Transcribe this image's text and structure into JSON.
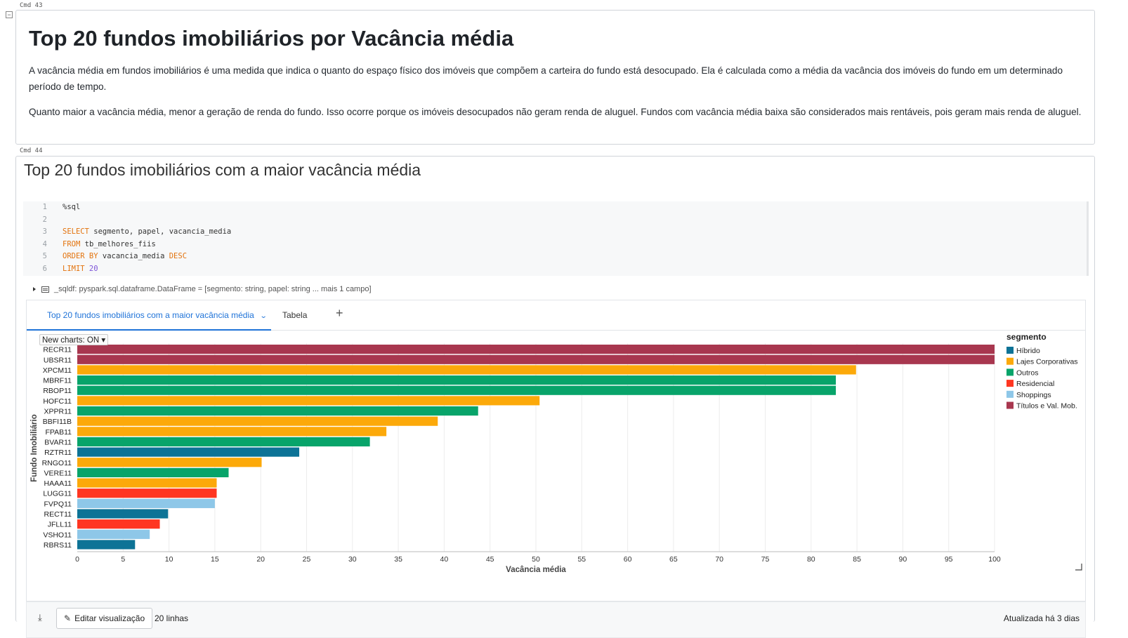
{
  "cells": {
    "cmd43": {
      "label": "Cmd  43"
    },
    "cmd44": {
      "label": "Cmd  44"
    }
  },
  "markdown": {
    "title": "Top 20 fundos imobiliários por Vacância média",
    "para1": "A vacância média em fundos imobiliários é uma medida que indica o quanto do espaço físico dos imóveis que compõem a carteira do fundo está desocupado. Ela é calculada como a média da vacância dos imóveis do fundo em um determinado período de tempo.",
    "para2": "Quanto maior a vacância média, menor a geração de renda do fundo. Isso ocorre porque os imóveis desocupados não geram renda de aluguel. Fundos com vacância média baixa são considerados mais rentáveis, pois geram mais renda de aluguel."
  },
  "code_cell": {
    "title": "Top 20 fundos imobiliários com a maior vacância média",
    "lines": [
      {
        "n": "1",
        "text": "%sql"
      },
      {
        "n": "2",
        "text": ""
      },
      {
        "n": "3",
        "kw": "SELECT",
        "text": " segmento, papel, vacancia_media"
      },
      {
        "n": "4",
        "kw": "FROM",
        "text": " tb_melhores_fiis"
      },
      {
        "n": "5",
        "kw": "ORDER BY",
        "text": " vacancia_media ",
        "kw2": "DESC"
      },
      {
        "n": "6",
        "kw": "LIMIT",
        "num": " 20"
      }
    ],
    "dataframe": "_sqldf:  pyspark.sql.dataframe.DataFrame = [segmento: string, papel: string ... mais 1 campo]"
  },
  "viz": {
    "tabs": [
      {
        "label": "Top 20 fundos imobiliários com a maior vacância média"
      },
      {
        "label": "Tabela"
      }
    ],
    "add_tab": "+",
    "new_charts": "New charts: ON",
    "footer": {
      "edit_button": "Editar visualização",
      "rows": "20 linhas",
      "updated": "Atualizada há 3 dias"
    }
  },
  "colors": {
    "Híbrido": "#0d7396",
    "Lajes Corporativas": "#fca90a",
    "Outros": "#08a46a",
    "Residencial": "#ff3621",
    "Shoppings": "#8ec7e8",
    "Títulos e Val. Mob.": "#a8374f"
  },
  "chart_data": {
    "type": "bar",
    "orientation": "horizontal",
    "xlabel": "Vacância média",
    "ylabel": "Fundo Imobiliário",
    "xlim": [
      0,
      100
    ],
    "xticks": [
      0,
      5,
      10,
      15,
      20,
      25,
      30,
      35,
      40,
      45,
      50,
      55,
      60,
      65,
      70,
      75,
      80,
      85,
      90,
      95,
      100
    ],
    "grid": true,
    "legend": {
      "title": "segmento",
      "placement": "right"
    },
    "bars": [
      {
        "papel": "RECR11",
        "segmento": "Títulos e Val. Mob.",
        "value": 100
      },
      {
        "papel": "UBSR11",
        "segmento": "Títulos e Val. Mob.",
        "value": 100
      },
      {
        "papel": "XPCM11",
        "segmento": "Lajes Corporativas",
        "value": 84.9
      },
      {
        "papel": "MBRF11",
        "segmento": "Outros",
        "value": 82.7
      },
      {
        "papel": "RBOP11",
        "segmento": "Outros",
        "value": 82.7
      },
      {
        "papel": "HOFC11",
        "segmento": "Lajes Corporativas",
        "value": 50.4
      },
      {
        "papel": "XPPR11",
        "segmento": "Outros",
        "value": 43.7
      },
      {
        "papel": "BBFI11B",
        "segmento": "Lajes Corporativas",
        "value": 39.3
      },
      {
        "papel": "FPAB11",
        "segmento": "Lajes Corporativas",
        "value": 33.7
      },
      {
        "papel": "BVAR11",
        "segmento": "Outros",
        "value": 31.9
      },
      {
        "papel": "RZTR11",
        "segmento": "Híbrido",
        "value": 24.2
      },
      {
        "papel": "RNGO11",
        "segmento": "Lajes Corporativas",
        "value": 20.1
      },
      {
        "papel": "VERE11",
        "segmento": "Outros",
        "value": 16.5
      },
      {
        "papel": "HAAA11",
        "segmento": "Lajes Corporativas",
        "value": 15.2
      },
      {
        "papel": "LUGG11",
        "segmento": "Residencial",
        "value": 15.2
      },
      {
        "papel": "FVPQ11",
        "segmento": "Shoppings",
        "value": 15.0
      },
      {
        "papel": "RECT11",
        "segmento": "Híbrido",
        "value": 9.9
      },
      {
        "papel": "JFLL11",
        "segmento": "Residencial",
        "value": 9.0
      },
      {
        "papel": "VSHO11",
        "segmento": "Shoppings",
        "value": 7.9
      },
      {
        "papel": "RBRS11",
        "segmento": "Híbrido",
        "value": 6.3
      }
    ]
  }
}
